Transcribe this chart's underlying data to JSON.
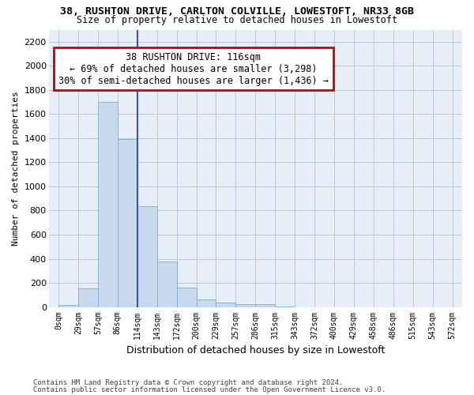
{
  "title1": "38, RUSHTON DRIVE, CARLTON COLVILLE, LOWESTOFT, NR33 8GB",
  "title2": "Size of property relative to detached houses in Lowestoft",
  "xlabel": "Distribution of detached houses by size in Lowestoft",
  "ylabel": "Number of detached properties",
  "bin_labels": [
    "0sqm",
    "29sqm",
    "57sqm",
    "86sqm",
    "114sqm",
    "143sqm",
    "172sqm",
    "200sqm",
    "229sqm",
    "257sqm",
    "286sqm",
    "315sqm",
    "343sqm",
    "372sqm",
    "400sqm",
    "429sqm",
    "458sqm",
    "486sqm",
    "515sqm",
    "543sqm",
    "572sqm"
  ],
  "bar_values": [
    15,
    155,
    1700,
    1390,
    835,
    380,
    160,
    60,
    35,
    25,
    25,
    5,
    0,
    0,
    0,
    0,
    0,
    0,
    0,
    0,
    0
  ],
  "bar_color": "#c8d9ee",
  "bar_edge_color": "#7aaed6",
  "annotation_title": "38 RUSHTON DRIVE: 116sqm",
  "annotation_line1": "← 69% of detached houses are smaller (3,298)",
  "annotation_line2": "30% of semi-detached houses are larger (1,436) →",
  "annotation_box_color": "#ffffff",
  "annotation_box_edge": "#cc0000",
  "vline_color": "#3a5a8c",
  "ylim": [
    0,
    2300
  ],
  "yticks": [
    0,
    200,
    400,
    600,
    800,
    1000,
    1200,
    1400,
    1600,
    1800,
    2000,
    2200
  ],
  "footer1": "Contains HM Land Registry data © Crown copyright and database right 2024.",
  "footer2": "Contains public sector information licensed under the Open Government Licence v3.0.",
  "bg_color": "#e8eef8",
  "grid_color": "#b8c8dc"
}
